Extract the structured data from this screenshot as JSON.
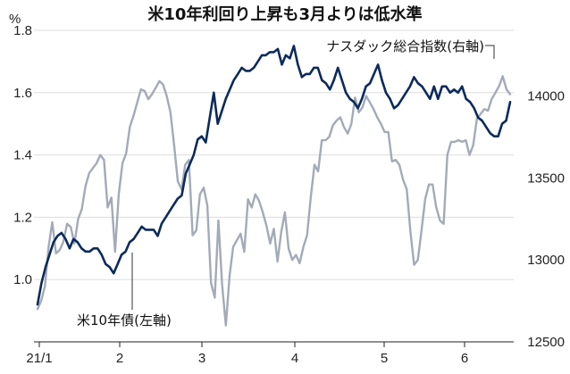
{
  "chart_data": {
    "type": "line",
    "title": "米10年利回り上昇も3月よりは低水準",
    "left_axis_unit": "%",
    "x_tick_labels": [
      "21/1",
      "2",
      "3",
      "4",
      "5",
      "6"
    ],
    "y_left": {
      "ylim": [
        0.8,
        1.8
      ],
      "ticks": [
        1.0,
        1.2,
        1.4,
        1.6,
        1.8
      ],
      "tick_labels": [
        "1.0",
        "1.2",
        "1.4",
        "1.6",
        "1.8"
      ]
    },
    "y_right": {
      "ylim": [
        12500,
        14400
      ],
      "ticks": [
        12500,
        13000,
        13500,
        14000
      ],
      "tick_labels": [
        "12500",
        "13000",
        "13500",
        "14000"
      ]
    },
    "grid": "horizontal",
    "series": [
      {
        "name": "米10年債(左軸)",
        "axis": "left",
        "color": "#0b2a5c",
        "values": [
          0.92,
          0.99,
          1.04,
          1.08,
          1.12,
          1.14,
          1.15,
          1.13,
          1.1,
          1.13,
          1.12,
          1.1,
          1.09,
          1.09,
          1.1,
          1.1,
          1.08,
          1.05,
          1.04,
          1.02,
          1.05,
          1.08,
          1.09,
          1.12,
          1.13,
          1.15,
          1.17,
          1.16,
          1.16,
          1.16,
          1.14,
          1.18,
          1.2,
          1.22,
          1.24,
          1.26,
          1.27,
          1.34,
          1.37,
          1.4,
          1.45,
          1.46,
          1.44,
          1.52,
          1.6,
          1.5,
          1.54,
          1.58,
          1.61,
          1.64,
          1.66,
          1.68,
          1.67,
          1.67,
          1.68,
          1.7,
          1.72,
          1.72,
          1.73,
          1.73,
          1.74,
          1.69,
          1.72,
          1.71,
          1.75,
          1.69,
          1.65,
          1.66,
          1.66,
          1.68,
          1.68,
          1.64,
          1.63,
          1.61,
          1.64,
          1.68,
          1.64,
          1.6,
          1.58,
          1.57,
          1.55,
          1.58,
          1.62,
          1.63,
          1.66,
          1.69,
          1.64,
          1.6,
          1.58,
          1.55,
          1.56,
          1.58,
          1.6,
          1.62,
          1.65,
          1.63,
          1.62,
          1.6,
          1.58,
          1.62,
          1.58,
          1.62,
          1.62,
          1.6,
          1.61,
          1.6,
          1.62,
          1.58,
          1.57,
          1.55,
          1.52,
          1.51,
          1.49,
          1.47,
          1.46,
          1.46,
          1.5,
          1.51,
          1.57
        ]
      },
      {
        "name": "ナスダック総合指数(右軸)",
        "axis": "right",
        "color": "#a3aab8",
        "values": [
          12700,
          12750,
          12840,
          13080,
          13230,
          13040,
          13060,
          13110,
          13220,
          13200,
          13100,
          13250,
          13310,
          13450,
          13530,
          13560,
          13590,
          13640,
          13610,
          13320,
          13380,
          13050,
          13400,
          13590,
          13650,
          13810,
          13880,
          13960,
          14040,
          14030,
          13980,
          14010,
          14050,
          14090,
          14070,
          14000,
          13900,
          13700,
          13480,
          13430,
          13580,
          13610,
          13150,
          13180,
          13400,
          13440,
          13330,
          12860,
          12770,
          13240,
          12850,
          12600,
          12900,
          13080,
          13120,
          13160,
          13050,
          13370,
          13320,
          13400,
          13360,
          13290,
          13210,
          13100,
          13190,
          12990,
          13170,
          13290,
          13070,
          13000,
          13030,
          12980,
          13080,
          13150,
          13380,
          13580,
          13540,
          13730,
          13730,
          13750,
          13820,
          13850,
          13870,
          13810,
          13770,
          13830,
          13990,
          13900,
          13930,
          14000,
          13960,
          13920,
          13870,
          13830,
          13780,
          13780,
          13600,
          13610,
          13580,
          13490,
          13430,
          13170,
          12970,
          13000,
          13180,
          13370,
          13460,
          13460,
          13320,
          13240,
          13220,
          13640,
          13720,
          13720,
          13730,
          13720,
          13730,
          13640,
          13700,
          13860,
          13890,
          13920,
          13910,
          13980,
          14020,
          14060,
          14120,
          14040,
          14010
        ]
      }
    ]
  }
}
